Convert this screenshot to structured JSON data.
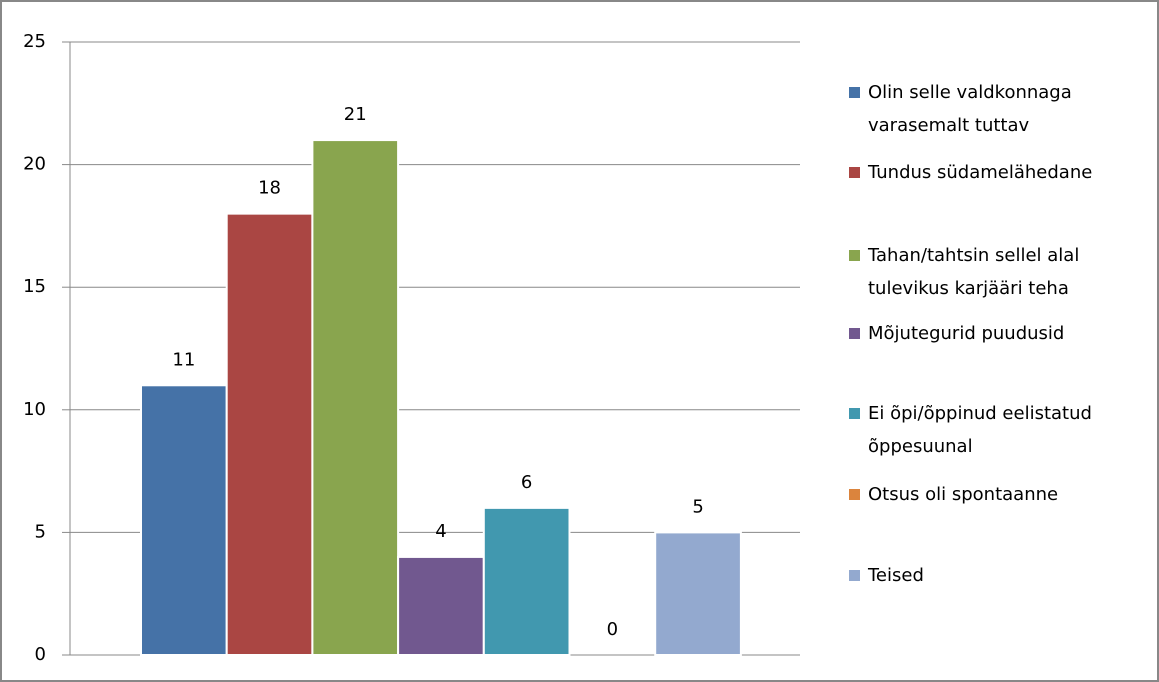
{
  "chart_data": {
    "type": "bar",
    "categories": [
      null
    ],
    "series": [
      {
        "name": "Olin selle valdkonnaga varasemalt tuttav",
        "color": "#4572A7",
        "values": [
          11
        ]
      },
      {
        "name": "Tundus südamelähedane",
        "color": "#AA4643",
        "values": [
          18
        ]
      },
      {
        "name": "Tahan/tahtsin sellel alal tulevikus karjääri teha",
        "color": "#89A54E",
        "values": [
          21
        ]
      },
      {
        "name": "Mõjutegurid puudusid",
        "color": "#71588F",
        "values": [
          4
        ]
      },
      {
        "name": "Ei õpi/õppinud eelistatud õppesuunal",
        "color": "#4198AF",
        "values": [
          6
        ]
      },
      {
        "name": "Otsus oli spontaanne",
        "color": "#DB843D",
        "values": [
          0
        ]
      },
      {
        "name": "Teised",
        "color": "#93A9CF",
        "values": [
          5
        ]
      }
    ],
    "ylim": [
      0,
      25
    ],
    "yticks": [
      0,
      5,
      10,
      15,
      20,
      25
    ],
    "grid": true,
    "legend": "right"
  }
}
